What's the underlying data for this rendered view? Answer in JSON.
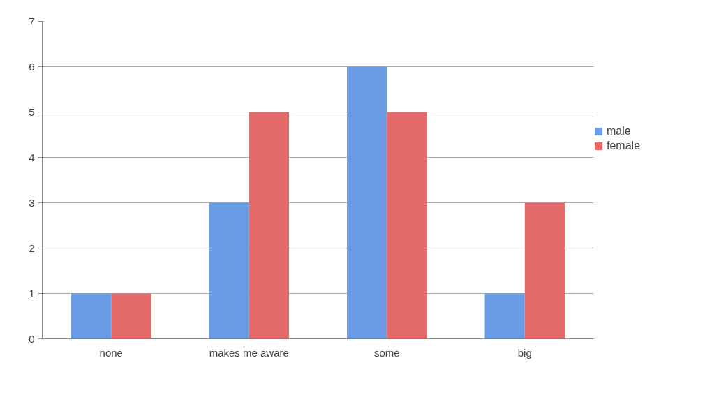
{
  "chart_data": {
    "type": "bar",
    "categories": [
      "none",
      "makes me aware",
      "some",
      "big"
    ],
    "series": [
      {
        "name": "male",
        "color": "#6a9de6",
        "values": [
          1,
          3,
          6,
          1
        ]
      },
      {
        "name": "female",
        "color": "#e56a6a",
        "values": [
          1,
          5,
          5,
          3
        ]
      }
    ],
    "ylim": [
      0,
      7
    ],
    "yticks": [
      0,
      1,
      2,
      3,
      4,
      5,
      6,
      7
    ],
    "grid": "y",
    "legend": "right"
  }
}
